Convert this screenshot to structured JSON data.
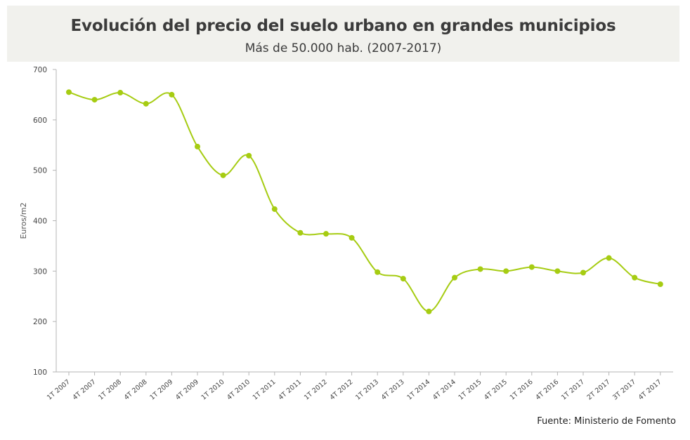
{
  "header": {
    "title": "Evolución del precio del suelo urbano en grandes municipios",
    "subtitle": "Más de 50.000 hab. (2007-2017)"
  },
  "footer": {
    "source": "Fuente: Ministerio de Fomento"
  },
  "chart_data": {
    "type": "line",
    "title": "Evolución del precio del suelo urbano en grandes municipios",
    "subtitle": "Más de 50.000 hab. (2007-2017)",
    "xlabel": "",
    "ylabel": "Euros/m2",
    "ylim": [
      100,
      700
    ],
    "yticks": [
      100,
      200,
      300,
      400,
      500,
      600,
      700
    ],
    "grid": false,
    "legend": "none",
    "line_color": "#a6cc12",
    "categories": [
      "1T 2007",
      "4T 2007",
      "1T 2008",
      "4T 2008",
      "1T 2009",
      "4T 2009",
      "1T 2010",
      "4T 2010",
      "1T 2011",
      "4T 2011",
      "1T 2012",
      "4T 2012",
      "1T 2013",
      "4T 2013",
      "1T 2014",
      "4T 2014",
      "1T 2015",
      "4T 2015",
      "1T 2016",
      "4T 2016",
      "1T 2017",
      "2T 2017",
      "3T 2017",
      "4T 2017"
    ],
    "series": [
      {
        "values": [
          655,
          640,
          654,
          632,
          650,
          547,
          490,
          529,
          423,
          376,
          374,
          366,
          298,
          285,
          220,
          287,
          304,
          300,
          308,
          300,
          297,
          326,
          287,
          274
        ]
      }
    ]
  }
}
